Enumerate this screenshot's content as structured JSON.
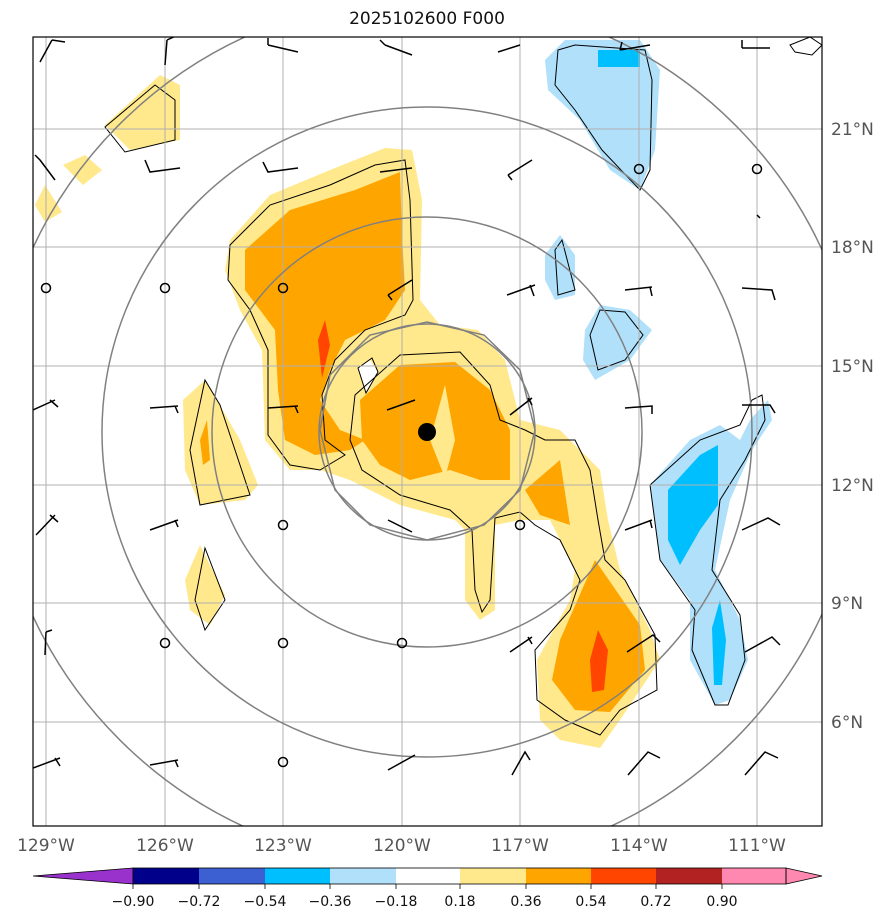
{
  "title": "2025102600 F000",
  "colors": {
    "land": "#ffffff",
    "grid": "#b0b0b0",
    "range_rings": "#808080",
    "contour": "#000000",
    "center_marker": "#000000"
  },
  "map": {
    "lon_ticks": [
      "129°W",
      "126°W",
      "123°W",
      "120°W",
      "117°W",
      "114°W",
      "111°W"
    ],
    "lat_ticks": [
      "21°N",
      "18°N",
      "15°N",
      "12°N",
      "9°N",
      "6°N"
    ]
  },
  "colorbar": {
    "labels": [
      "−0.90",
      "−0.72",
      "−0.54",
      "−0.36",
      "−0.18",
      "0.18",
      "0.36",
      "0.54",
      "0.72",
      "0.90"
    ],
    "colors": [
      "#9932cc",
      "#00008b",
      "#3c5fd1",
      "#00bfff",
      "#b0e0fa",
      "#ffffff",
      "#ffe98c",
      "#ffa500",
      "#ff4500",
      "#b22222",
      "#ff88b0",
      "#ff88b0"
    ]
  }
}
